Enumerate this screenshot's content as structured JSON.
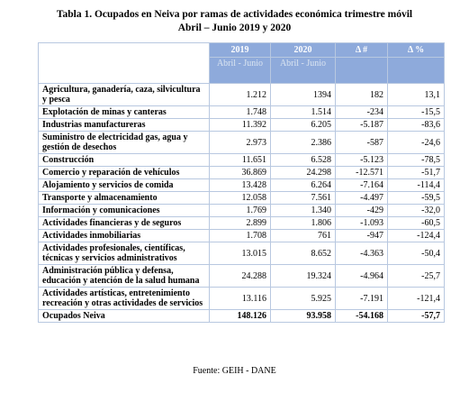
{
  "title": {
    "line1": "Tabla 1. Ocupados en Neiva por ramas de actividades económica trimestre móvil",
    "line2": "Abril – Junio 2019 y 2020"
  },
  "table": {
    "header": [
      "2019",
      "2020",
      "Δ #",
      "Δ %"
    ],
    "subheader": [
      "Abril - Junio",
      "Abril - Junio"
    ],
    "rows": [
      [
        "Agricultura, ganadería, caza, silvicultura y pesca",
        "1.212",
        "1394",
        "182",
        "13,1"
      ],
      [
        "Explotación de minas y canteras",
        "1.748",
        "1.514",
        "-234",
        "-15,5"
      ],
      [
        "Industrias manufactureras",
        "11.392",
        "6.205",
        "-5.187",
        "-83,6"
      ],
      [
        "Suministro de electricidad gas, agua y gestión de desechos",
        "2.973",
        "2.386",
        "-587",
        "-24,6"
      ],
      [
        "Construcción",
        "11.651",
        "6.528",
        "-5.123",
        "-78,5"
      ],
      [
        "Comercio y reparación de vehículos",
        "36.869",
        "24.298",
        "-12.571",
        "-51,7"
      ],
      [
        "Alojamiento y servicios de comida",
        "13.428",
        "6.264",
        "-7.164",
        "-114,4"
      ],
      [
        "Transporte y almacenamiento",
        "12.058",
        "7.561",
        "-4.497",
        "-59,5"
      ],
      [
        "Información y comunicaciones",
        "1.769",
        "1.340",
        "-429",
        "-32,0"
      ],
      [
        "Actividades financieras y de seguros",
        "2.899",
        "1.806",
        "-1.093",
        "-60,5"
      ],
      [
        "Actividades inmobiliarias",
        "1.708",
        "761",
        "-947",
        "-124,4"
      ],
      [
        "Actividades profesionales, científicas, técnicas y servicios administrativos",
        "13.015",
        "8.652",
        "-4.363",
        "-50,4"
      ],
      [
        "Administración pública y defensa, educación y atención de la salud humana",
        "24.288",
        "19.324",
        "-4.964",
        "-25,7"
      ],
      [
        "Actividades artísticas, entretenimiento recreación y otras actividades de servicios",
        "13.116",
        "5.925",
        "-7.191",
        "-121,4"
      ]
    ],
    "total": [
      "Ocupados Neiva",
      "148.126",
      "93.958",
      "-54.168",
      "-57,7"
    ]
  },
  "source": "Fuente: GEIH - DANE"
}
